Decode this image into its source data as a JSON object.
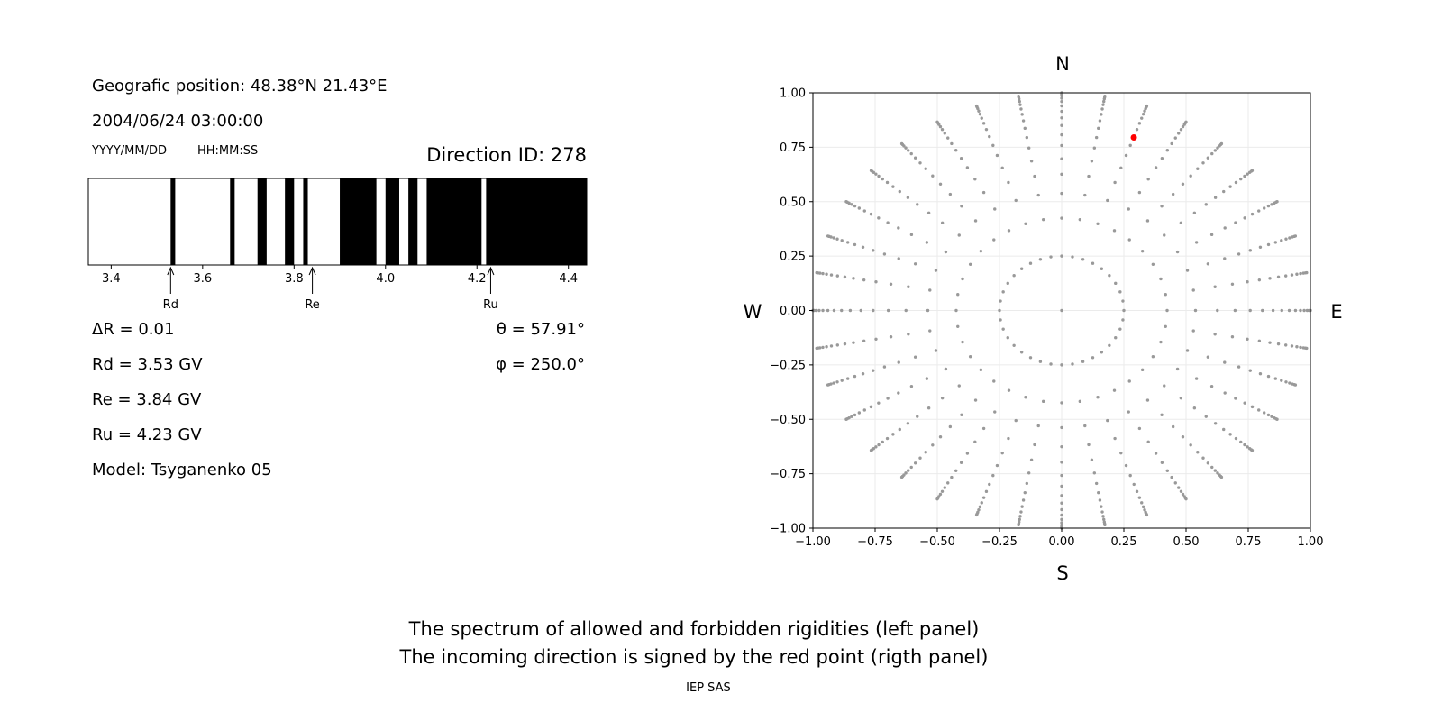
{
  "left_panel": {
    "position_text": "Geografic position: 48.38°N 21.43°E",
    "datetime": "2004/06/24 03:00:00",
    "date_format": "YYYY/MM/DD",
    "time_format": "HH:MM:SS",
    "direction_id": "Direction ID: 278",
    "delta_r": "ΔR = 0.01",
    "rd": "Rd = 3.53 GV",
    "re": "Re = 3.84 GV",
    "ru": "Ru = 4.23 GV",
    "model": "Model: Tsyganenko 05",
    "theta": "θ = 57.91°",
    "phi": "φ = 250.0°"
  },
  "footer": {
    "line1": "The spectrum of allowed and forbidden rigidities (left panel)",
    "line2": "The incoming direction is signed by the red point (rigth panel)",
    "credit": "IEP SAS"
  },
  "chart_data": [
    {
      "type": "bar",
      "xlim": [
        3.35,
        4.44
      ],
      "ticks": [
        3.4,
        3.6,
        3.8,
        4.0,
        4.2,
        4.4
      ],
      "tick_labels": [
        "3.4",
        "3.6",
        "3.8",
        "4.0",
        "4.2",
        "4.4"
      ],
      "forbidden_intervals": [
        [
          3.53,
          3.54
        ],
        [
          3.66,
          3.67
        ],
        [
          3.72,
          3.74
        ],
        [
          3.78,
          3.8
        ],
        [
          3.82,
          3.83
        ],
        [
          3.9,
          3.98
        ],
        [
          4.0,
          4.03
        ],
        [
          4.05,
          4.07
        ],
        [
          4.09,
          4.21
        ],
        [
          4.22,
          4.44
        ]
      ],
      "annotations": [
        {
          "label": "Rd",
          "x": 3.53
        },
        {
          "label": "Re",
          "x": 3.84
        },
        {
          "label": "Ru",
          "x": 4.23
        }
      ],
      "colors": {
        "forbidden": "#000000",
        "allowed": "#ffffff"
      }
    },
    {
      "type": "scatter",
      "xlim": [
        -1,
        1
      ],
      "ylim": [
        -1,
        1
      ],
      "ticks": [
        -1.0,
        -0.75,
        -0.5,
        -0.25,
        0.0,
        0.25,
        0.5,
        0.75,
        1.0
      ],
      "tick_labels": [
        "−1.00",
        "−0.75",
        "−0.50",
        "−0.25",
        "0.00",
        "0.25",
        "0.50",
        "0.75",
        "1.00"
      ],
      "grid": true,
      "directions": {
        "north": "N",
        "south": "S",
        "west": "W",
        "east": "E"
      },
      "grid_azimuths_deg_step": 10,
      "grid_radii": [
        0,
        0.25,
        0.424,
        0.538,
        0.626,
        0.697,
        0.758,
        0.807,
        0.85,
        0.885,
        0.915,
        0.94,
        0.96,
        0.975,
        0.987,
        0.995,
        1.0
      ],
      "highlight_point": {
        "x": 0.29,
        "y": 0.795
      },
      "colors": {
        "grid_points": "#999999",
        "highlight": "#ff0000"
      }
    }
  ]
}
